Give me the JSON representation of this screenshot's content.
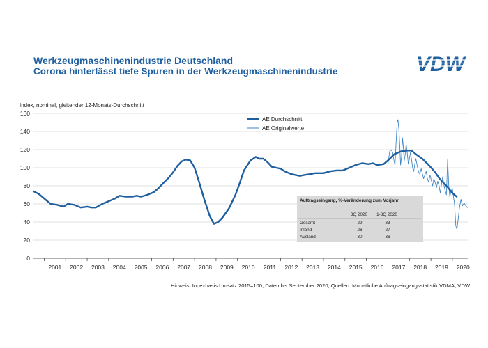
{
  "header": {
    "title": "Werkzeugmaschinenindustrie Deutschland",
    "subtitle": "Corona hinterlässt tiefe Spuren in der Werkzeugmaschinenindustrie",
    "logo_text": "VDW"
  },
  "note": "Hinweis: Indexbasis Umsatz 2015=100, Daten bis September 2020, Quellen: Monatliche Auftragseingangsstatistik VDMA, VDW",
  "colors": {
    "brand": "#1f5f9f",
    "dark_line": "#1f5f9f",
    "light_line": "#3f86c5",
    "box": "#d9d9d9"
  },
  "chart_data": {
    "type": "line",
    "ylabel": "Index, nominal, gleitender 12-Monats-Durchschnitt",
    "ylim": [
      0,
      160
    ],
    "yticks": [
      0,
      20,
      40,
      60,
      80,
      100,
      120,
      140,
      160
    ],
    "xlim": [
      2000.5,
      2020.75
    ],
    "xtick_labels": [
      "2001",
      "2002",
      "2003",
      "2004",
      "2005",
      "2006",
      "2007",
      "2008",
      "2009",
      "2010",
      "2011",
      "2012",
      "2013",
      "2014",
      "2015",
      "2016",
      "2017",
      "2018",
      "2019",
      "2020"
    ],
    "grid": "horizontal",
    "legend_position": "top-right",
    "series": [
      {
        "name": "AE Durchschnitt",
        "style": "thick",
        "points": [
          [
            2000.5,
            74
          ],
          [
            2000.75,
            71
          ],
          [
            2001.0,
            66
          ],
          [
            2001.3,
            60
          ],
          [
            2001.6,
            59
          ],
          [
            2001.9,
            57
          ],
          [
            2002.1,
            60
          ],
          [
            2002.4,
            59
          ],
          [
            2002.7,
            56
          ],
          [
            2003.0,
            57
          ],
          [
            2003.2,
            56
          ],
          [
            2003.4,
            56
          ],
          [
            2003.7,
            60
          ],
          [
            2004.0,
            63
          ],
          [
            2004.3,
            66
          ],
          [
            2004.5,
            69
          ],
          [
            2004.8,
            68
          ],
          [
            2005.1,
            68
          ],
          [
            2005.3,
            69
          ],
          [
            2005.5,
            68
          ],
          [
            2005.8,
            70
          ],
          [
            2006.1,
            73
          ],
          [
            2006.3,
            77
          ],
          [
            2006.5,
            82
          ],
          [
            2006.8,
            89
          ],
          [
            2007.0,
            95
          ],
          [
            2007.2,
            102
          ],
          [
            2007.4,
            107
          ],
          [
            2007.6,
            109
          ],
          [
            2007.8,
            108
          ],
          [
            2008.0,
            100
          ],
          [
            2008.2,
            85
          ],
          [
            2008.45,
            65
          ],
          [
            2008.7,
            47
          ],
          [
            2008.9,
            38
          ],
          [
            2009.1,
            40
          ],
          [
            2009.3,
            45
          ],
          [
            2009.6,
            55
          ],
          [
            2009.9,
            70
          ],
          [
            2010.1,
            83
          ],
          [
            2010.3,
            97
          ],
          [
            2010.6,
            108
          ],
          [
            2010.85,
            112
          ],
          [
            2011.0,
            110
          ],
          [
            2011.2,
            110
          ],
          [
            2011.4,
            106
          ],
          [
            2011.6,
            101
          ],
          [
            2011.8,
            100
          ],
          [
            2012.0,
            99
          ],
          [
            2012.2,
            96
          ],
          [
            2012.5,
            93
          ],
          [
            2012.7,
            92
          ],
          [
            2012.9,
            91
          ],
          [
            2013.1,
            92
          ],
          [
            2013.4,
            93
          ],
          [
            2013.6,
            94
          ],
          [
            2013.8,
            94
          ],
          [
            2014.0,
            94
          ],
          [
            2014.3,
            96
          ],
          [
            2014.6,
            97
          ],
          [
            2014.9,
            97
          ],
          [
            2015.2,
            100
          ],
          [
            2015.5,
            103
          ],
          [
            2015.8,
            105
          ],
          [
            2016.1,
            104
          ],
          [
            2016.3,
            105
          ],
          [
            2016.5,
            103
          ],
          [
            2016.8,
            104
          ],
          [
            2017.0,
            108
          ],
          [
            2017.3,
            115
          ],
          [
            2017.6,
            118
          ],
          [
            2017.9,
            119
          ],
          [
            2018.1,
            119
          ],
          [
            2018.3,
            115
          ],
          [
            2018.6,
            110
          ],
          [
            2018.9,
            103
          ],
          [
            2019.2,
            95
          ],
          [
            2019.4,
            88
          ],
          [
            2019.6,
            83
          ],
          [
            2019.8,
            78
          ],
          [
            2020.0,
            72
          ],
          [
            2020.2,
            68
          ]
        ]
      },
      {
        "name": "AE Originalwerte",
        "style": "thin",
        "points": [
          [
            2017.0,
            103
          ],
          [
            2017.08,
            118
          ],
          [
            2017.15,
            120
          ],
          [
            2017.22,
            117
          ],
          [
            2017.28,
            108
          ],
          [
            2017.33,
            103
          ],
          [
            2017.38,
            128
          ],
          [
            2017.43,
            150
          ],
          [
            2017.47,
            153
          ],
          [
            2017.51,
            142
          ],
          [
            2017.55,
            125
          ],
          [
            2017.59,
            103
          ],
          [
            2017.63,
            112
          ],
          [
            2017.68,
            133
          ],
          [
            2017.72,
            122
          ],
          [
            2017.76,
            108
          ],
          [
            2017.8,
            114
          ],
          [
            2017.85,
            126
          ],
          [
            2017.9,
            116
          ],
          [
            2017.95,
            104
          ],
          [
            2018.0,
            110
          ],
          [
            2018.05,
            117
          ],
          [
            2018.1,
            109
          ],
          [
            2018.15,
            100
          ],
          [
            2018.2,
            96
          ],
          [
            2018.25,
            104
          ],
          [
            2018.3,
            110
          ],
          [
            2018.35,
            104
          ],
          [
            2018.42,
            96
          ],
          [
            2018.48,
            93
          ],
          [
            2018.55,
            99
          ],
          [
            2018.6,
            94
          ],
          [
            2018.66,
            88
          ],
          [
            2018.72,
            92
          ],
          [
            2018.78,
            96
          ],
          [
            2018.84,
            88
          ],
          [
            2018.9,
            84
          ],
          [
            2018.96,
            92
          ],
          [
            2019.02,
            86
          ],
          [
            2019.08,
            80
          ],
          [
            2019.14,
            88
          ],
          [
            2019.2,
            84
          ],
          [
            2019.26,
            78
          ],
          [
            2019.32,
            85
          ],
          [
            2019.38,
            80
          ],
          [
            2019.44,
            72
          ],
          [
            2019.5,
            83
          ],
          [
            2019.55,
            90
          ],
          [
            2019.6,
            82
          ],
          [
            2019.66,
            75
          ],
          [
            2019.72,
            70
          ],
          [
            2019.78,
            109
          ],
          [
            2019.83,
            80
          ],
          [
            2019.88,
            68
          ],
          [
            2019.94,
            74
          ],
          [
            2020.0,
            77
          ],
          [
            2020.05,
            68
          ],
          [
            2020.1,
            60
          ],
          [
            2020.16,
            36
          ],
          [
            2020.21,
            32
          ],
          [
            2020.27,
            43
          ],
          [
            2020.33,
            56
          ],
          [
            2020.4,
            65
          ],
          [
            2020.47,
            58
          ],
          [
            2020.55,
            61
          ],
          [
            2020.62,
            58
          ],
          [
            2020.7,
            56
          ]
        ]
      }
    ],
    "table": {
      "title": "Auftragseingang, %-Veränderung zum Vorjahr",
      "columns": [
        "",
        "3Q 2020",
        "1-3Q 2020"
      ],
      "rows": [
        [
          "Gesamt",
          "-29",
          "-33"
        ],
        [
          "Inland",
          "-26",
          "-27"
        ],
        [
          "Ausland",
          "-30",
          "-36"
        ]
      ]
    }
  }
}
